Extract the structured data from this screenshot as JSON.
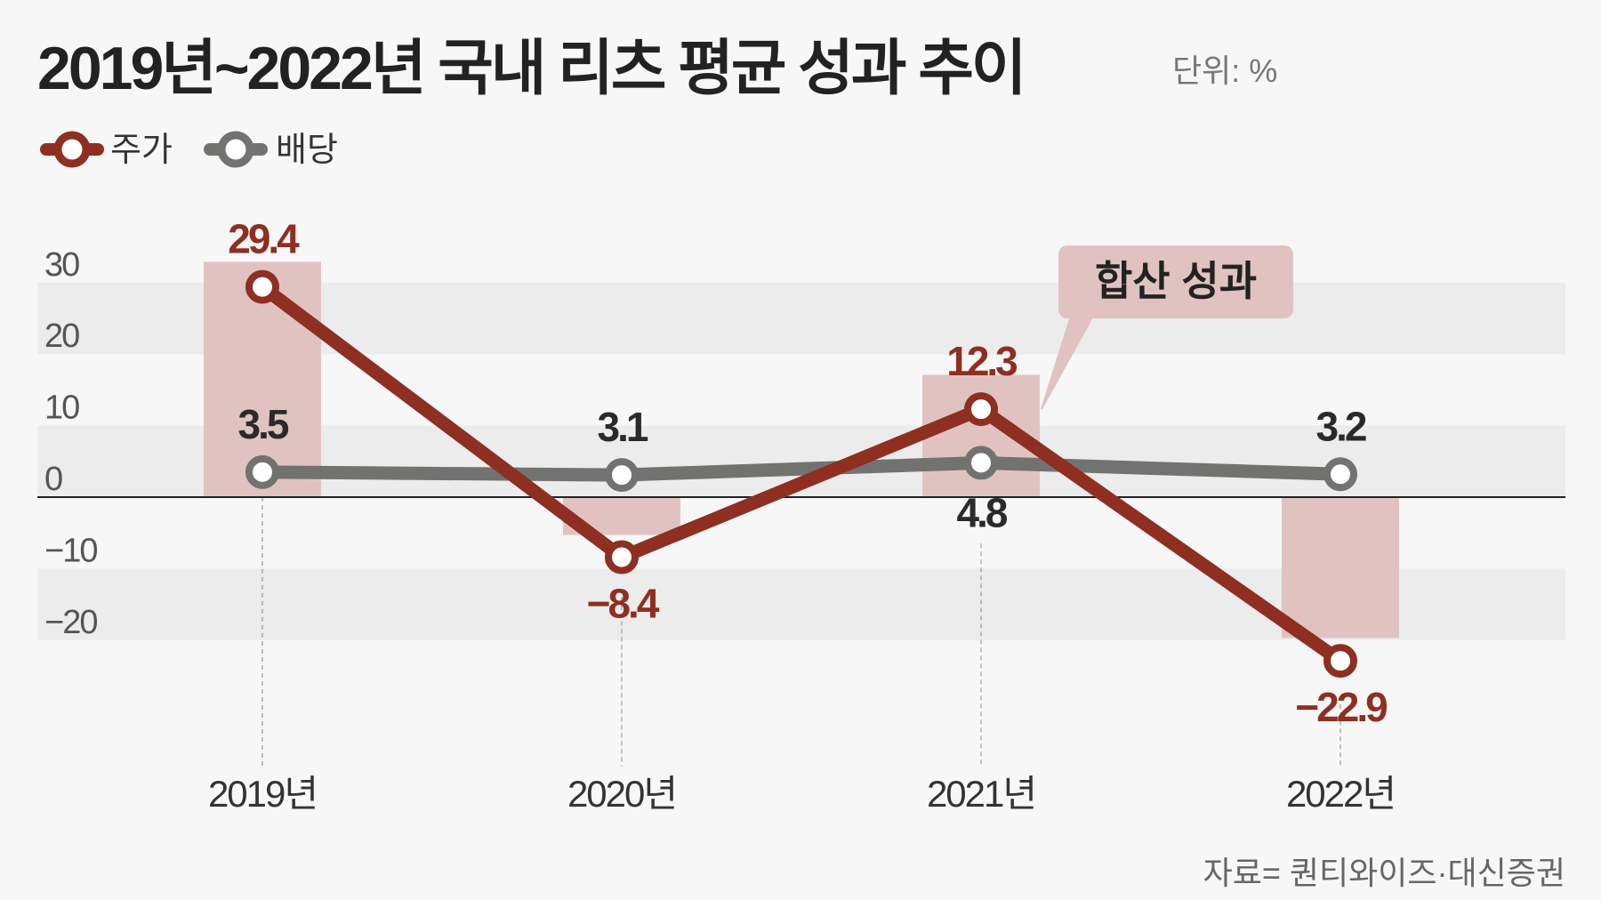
{
  "title": "2019년~2022년 국내 리츠 평균 성과 추이",
  "unit": "단위: %",
  "source": "자료= 퀀티와이즈·대신증권",
  "colors": {
    "stock": "#8e2f22",
    "dividend": "#727270",
    "combined_bar": "#e0c3c1",
    "band": "#ececec",
    "background": "#f7f7f7"
  },
  "chart_data": {
    "type": "line",
    "categories": [
      "2019년",
      "2020년",
      "2021년",
      "2022년"
    ],
    "ylim": [
      -30,
      35
    ],
    "yticks": [
      "30",
      "20",
      "10",
      "0",
      "-10",
      "-20"
    ],
    "ytick_values": [
      30,
      20,
      10,
      0,
      -10,
      -20
    ],
    "legend_position": "top-left",
    "series": [
      {
        "name": "주가",
        "values": [
          29.4,
          -8.4,
          12.3,
          -22.9
        ],
        "labels": [
          "29.4",
          "−8.4",
          "12.3",
          "−22.9"
        ]
      },
      {
        "name": "배당",
        "values": [
          3.5,
          3.1,
          4.8,
          3.2
        ],
        "labels": [
          "3.5",
          "3.1",
          "4.8",
          "3.2"
        ]
      }
    ],
    "bars": {
      "name": "합산 성과",
      "type": "bar",
      "values": [
        32.9,
        -5.3,
        17.1,
        -19.7
      ]
    }
  }
}
